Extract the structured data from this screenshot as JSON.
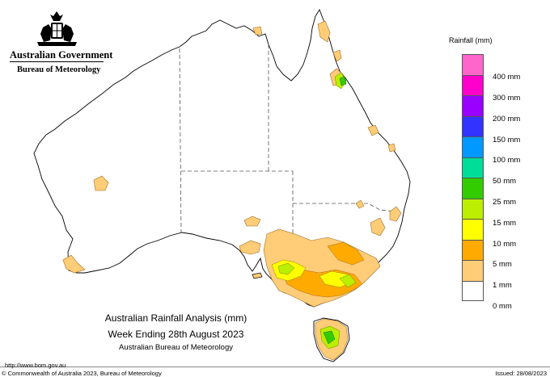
{
  "header": {
    "government": "Australian Government",
    "agency": "Bureau of Meteorology"
  },
  "legend": {
    "title": "Rainfall (mm)",
    "items": [
      {
        "label": "400 mm",
        "color": "#ff66cc"
      },
      {
        "label": "300 mm",
        "color": "#ff00cc"
      },
      {
        "label": "200 mm",
        "color": "#9900ff"
      },
      {
        "label": "150 mm",
        "color": "#3333ff"
      },
      {
        "label": "100 mm",
        "color": "#0099ff"
      },
      {
        "label": "50 mm",
        "color": "#00dd99"
      },
      {
        "label": "25 mm",
        "color": "#33cc00"
      },
      {
        "label": "15 mm",
        "color": "#bbee00"
      },
      {
        "label": "10 mm",
        "color": "#ffff00"
      },
      {
        "label": "5 mm",
        "color": "#ffaa00"
      },
      {
        "label": "1 mm",
        "color": "#ffcc77"
      },
      {
        "label": "0 mm",
        "color": "#ffffff"
      }
    ]
  },
  "titles": {
    "line1": "Australian Rainfall Analysis (mm)",
    "line2": "Week Ending 28th August 2023",
    "line3": "Australian Bureau of Meteorology"
  },
  "footer": {
    "url": "http://www.bom.gov.au",
    "copyright": "© Commonwealth of Australia 2023, Bureau of Meteorology",
    "issued": "Issued: 28/08/2023"
  }
}
